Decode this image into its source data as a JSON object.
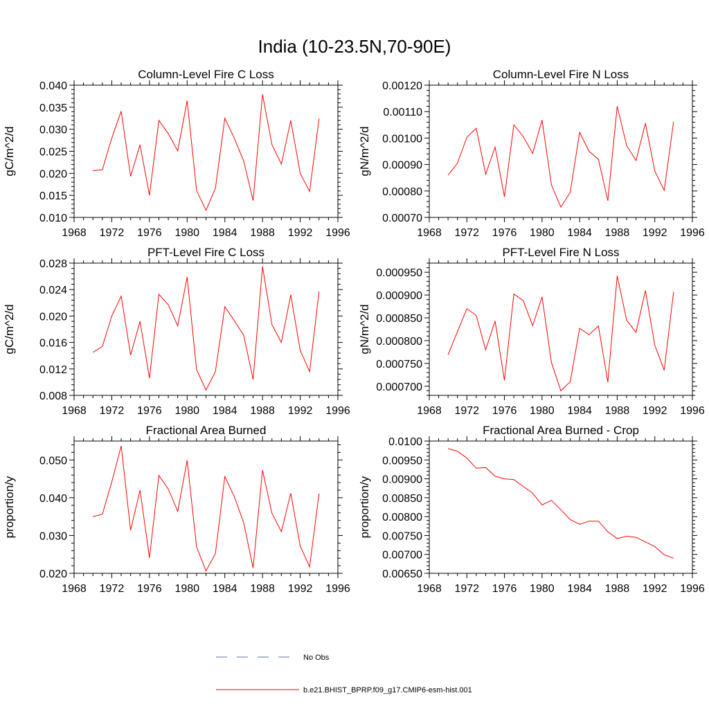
{
  "figure": {
    "title": "India (10-23.5N,70-90E)"
  },
  "legend": {
    "entries": [
      {
        "label": "No Obs",
        "color": "#5a6fb5",
        "style": "dashed"
      },
      {
        "label": "b.e21.BHIST_BPRP.f09_g17.CMIP6-esm-hist.001",
        "color": "#ff0000",
        "style": "solid"
      }
    ]
  },
  "chart_data": [
    {
      "type": "line",
      "title": "Column-Level Fire C Loss",
      "ylabel": "gC/m^2/d",
      "xlim": [
        1968,
        1996
      ],
      "xticks": [
        1968,
        1972,
        1976,
        1980,
        1984,
        1988,
        1992,
        1996
      ],
      "ylim": [
        0.01,
        0.04
      ],
      "yticks": [
        "0.010",
        "0.015",
        "0.020",
        "0.025",
        "0.030",
        "0.035",
        "0.040"
      ],
      "series": [
        {
          "color": "#ff0000",
          "x": [
            1970,
            1971,
            1972,
            1973,
            1974,
            1975,
            1976,
            1977,
            1978,
            1979,
            1980,
            1981,
            1982,
            1983,
            1984,
            1985,
            1986,
            1987,
            1988,
            1989,
            1990,
            1991,
            1992,
            1993,
            1994
          ],
          "y": [
            0.0206,
            0.0208,
            0.028,
            0.0341,
            0.0193,
            0.0265,
            0.015,
            0.032,
            0.029,
            0.0251,
            0.0365,
            0.0161,
            0.0116,
            0.0166,
            0.0325,
            0.028,
            0.0228,
            0.0138,
            0.0379,
            0.0265,
            0.0221,
            0.032,
            0.02,
            0.0159,
            0.0324
          ]
        }
      ]
    },
    {
      "type": "line",
      "title": "Column-Level Fire N Loss",
      "ylabel": "gN/m^2/d",
      "xlim": [
        1968,
        1996
      ],
      "xticks": [
        1968,
        1972,
        1976,
        1980,
        1984,
        1988,
        1992,
        1996
      ],
      "ylim": [
        0.0007,
        0.0012
      ],
      "yticks": [
        "0.00070",
        "0.00080",
        "0.00090",
        "0.00100",
        "0.00110",
        "0.00120"
      ],
      "series": [
        {
          "color": "#ff0000",
          "x": [
            1970,
            1971,
            1972,
            1973,
            1974,
            1975,
            1976,
            1977,
            1978,
            1979,
            1980,
            1981,
            1982,
            1983,
            1984,
            1985,
            1986,
            1987,
            1988,
            1989,
            1990,
            1991,
            1992,
            1993,
            1994
          ],
          "y": [
            0.00086,
            0.000905,
            0.001003,
            0.001037,
            0.000863,
            0.000966,
            0.000778,
            0.00105,
            0.001006,
            0.000942,
            0.001068,
            0.000823,
            0.000739,
            0.000795,
            0.001022,
            0.00095,
            0.00092,
            0.000763,
            0.00112,
            0.000972,
            0.000915,
            0.001056,
            0.000875,
            0.000802,
            0.001062
          ]
        }
      ]
    },
    {
      "type": "line",
      "title": "PFT-Level Fire C Loss",
      "ylabel": "gC/m^2/d",
      "xlim": [
        1968,
        1996
      ],
      "xticks": [
        1968,
        1972,
        1976,
        1980,
        1984,
        1988,
        1992,
        1996
      ],
      "ylim": [
        0.008,
        0.028
      ],
      "yticks": [
        "0.008",
        "0.012",
        "0.016",
        "0.020",
        "0.024",
        "0.028"
      ],
      "series": [
        {
          "color": "#ff0000",
          "x": [
            1970,
            1971,
            1972,
            1973,
            1974,
            1975,
            1976,
            1977,
            1978,
            1979,
            1980,
            1981,
            1982,
            1983,
            1984,
            1985,
            1986,
            1987,
            1988,
            1989,
            1990,
            1991,
            1992,
            1993,
            1994
          ],
          "y": [
            0.0145,
            0.0154,
            0.02,
            0.023,
            0.0141,
            0.0192,
            0.0106,
            0.0233,
            0.0217,
            0.0185,
            0.0259,
            0.0119,
            0.0088,
            0.0116,
            0.0214,
            0.0193,
            0.0171,
            0.0104,
            0.0275,
            0.0187,
            0.016,
            0.0232,
            0.0148,
            0.0116,
            0.0237
          ]
        }
      ]
    },
    {
      "type": "line",
      "title": "PFT-Level Fire N Loss",
      "ylabel": "gN/m^2/d",
      "xlim": [
        1968,
        1996
      ],
      "xticks": [
        1968,
        1972,
        1976,
        1980,
        1984,
        1988,
        1992,
        1996
      ],
      "ylim": [
        0.00068,
        0.00097
      ],
      "yticks": [
        "0.000700",
        "0.000750",
        "0.000800",
        "0.000850",
        "0.000900",
        "0.000950"
      ],
      "series": [
        {
          "color": "#ff0000",
          "x": [
            1970,
            1971,
            1972,
            1973,
            1974,
            1975,
            1976,
            1977,
            1978,
            1979,
            1980,
            1981,
            1982,
            1983,
            1984,
            1985,
            1986,
            1987,
            1988,
            1989,
            1990,
            1991,
            1992,
            1993,
            1994
          ],
          "y": [
            0.000769,
            0.00082,
            0.00087,
            0.000855,
            0.00078,
            0.000843,
            0.000713,
            0.000902,
            0.000888,
            0.000833,
            0.000896,
            0.000752,
            0.00069,
            0.00071,
            0.000827,
            0.000813,
            0.000832,
            0.000709,
            0.000942,
            0.000845,
            0.000818,
            0.00091,
            0.00079,
            0.000735,
            0.000907
          ]
        }
      ]
    },
    {
      "type": "line",
      "title": "Fractional Area Burned",
      "ylabel": "proportion/y",
      "xlim": [
        1968,
        1996
      ],
      "xticks": [
        1968,
        1972,
        1976,
        1980,
        1984,
        1988,
        1992,
        1996
      ],
      "ylim": [
        0.02,
        0.055
      ],
      "yticks": [
        "0.020",
        "0.030",
        "0.040",
        "0.050"
      ],
      "series": [
        {
          "color": "#ff0000",
          "x": [
            1970,
            1971,
            1972,
            1973,
            1974,
            1975,
            1976,
            1977,
            1978,
            1979,
            1980,
            1981,
            1982,
            1983,
            1984,
            1985,
            1986,
            1987,
            1988,
            1989,
            1990,
            1991,
            1992,
            1993,
            1994
          ],
          "y": [
            0.035,
            0.0356,
            0.0442,
            0.0537,
            0.0314,
            0.042,
            0.0241,
            0.0459,
            0.0423,
            0.0364,
            0.0499,
            0.027,
            0.0206,
            0.0252,
            0.0456,
            0.0403,
            0.0334,
            0.0214,
            0.0473,
            0.0359,
            0.031,
            0.0412,
            0.0272,
            0.0217,
            0.0411
          ]
        }
      ]
    },
    {
      "type": "line",
      "title": "Fractional Area Burned - Crop",
      "ylabel": "proportion/y",
      "xlim": [
        1968,
        1996
      ],
      "xticks": [
        1968,
        1972,
        1976,
        1980,
        1984,
        1988,
        1992,
        1996
      ],
      "ylim": [
        0.0065,
        0.01
      ],
      "yticks": [
        "0.00650",
        "0.00700",
        "0.00750",
        "0.00800",
        "0.00850",
        "0.00900",
        "0.00950",
        "0.0100"
      ],
      "series": [
        {
          "color": "#ff0000",
          "x": [
            1970,
            1971,
            1972,
            1973,
            1974,
            1975,
            1976,
            1977,
            1978,
            1979,
            1980,
            1981,
            1982,
            1983,
            1984,
            1985,
            1986,
            1987,
            1988,
            1989,
            1990,
            1991,
            1992,
            1993,
            1994
          ],
          "y": [
            0.0098,
            0.00973,
            0.00955,
            0.00928,
            0.0093,
            0.00907,
            0.009,
            0.00898,
            0.0088,
            0.00862,
            0.00831,
            0.00843,
            0.00818,
            0.00792,
            0.0078,
            0.00788,
            0.00788,
            0.0076,
            0.00742,
            0.00748,
            0.00745,
            0.00733,
            0.00721,
            0.00699,
            0.0069
          ]
        }
      ]
    }
  ]
}
